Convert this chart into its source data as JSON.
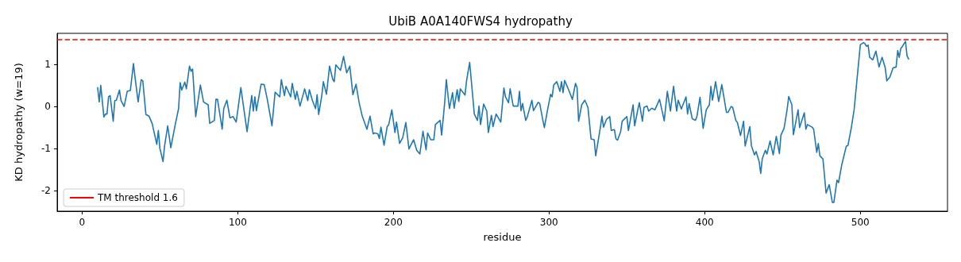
{
  "chart_data": {
    "type": "line",
    "title": "UbiB A0A140FWS4 hydropathy",
    "xlabel": "residue",
    "ylabel": "KD hydropathy (w=19)",
    "xlim": [
      -16,
      556
    ],
    "ylim": [
      -2.49,
      1.74
    ],
    "xticks": [
      0,
      100,
      200,
      300,
      400,
      500
    ],
    "yticks": [
      -2,
      -1,
      0,
      1
    ],
    "grid": false,
    "legend": "bottom left",
    "marker": "none",
    "line_style": "solid",
    "ref_lines": [
      {
        "axis": "y",
        "value": 1.6,
        "label": "TM threshold 1.6",
        "color": "#ff0000",
        "line_style": "dashed"
      }
    ],
    "series": [
      {
        "color": "#1f77b4",
        "x": [
          10,
          11,
          12,
          14,
          15,
          16,
          17,
          18,
          20,
          21,
          22,
          24,
          25,
          27,
          29,
          31,
          33,
          34,
          36,
          38,
          39,
          41,
          43,
          45,
          48,
          49,
          50,
          52,
          53,
          55,
          57,
          60,
          62,
          63,
          64,
          66,
          67,
          69,
          70,
          71,
          73,
          76,
          78,
          81,
          82,
          85,
          86,
          87,
          90,
          91,
          93,
          95,
          97,
          99,
          102,
          106,
          109,
          110,
          111,
          112,
          115,
          117,
          119,
          122,
          124,
          127,
          128,
          130,
          131,
          134,
          135,
          137,
          138,
          140,
          143,
          145,
          146,
          148,
          150,
          151,
          152,
          154,
          155,
          157,
          159,
          161,
          162,
          163,
          166,
          168,
          170,
          172,
          174,
          176,
          178,
          180,
          183,
          185,
          187,
          188,
          190,
          191,
          192,
          194,
          196,
          197,
          199,
          201,
          202,
          204,
          206,
          208,
          210,
          213,
          215,
          217,
          219,
          221,
          222,
          224,
          226,
          227,
          230,
          231,
          233,
          234,
          236,
          238,
          239,
          241,
          242,
          243,
          246,
          247,
          249,
          252,
          254,
          255,
          256,
          258,
          260,
          261,
          263,
          264,
          266,
          269,
          271,
          272,
          274,
          275,
          277,
          280,
          281,
          282,
          283,
          285,
          286,
          289,
          290,
          293,
          294,
          296,
          297,
          299,
          301,
          302,
          303,
          305,
          307,
          308,
          309,
          310,
          312,
          315,
          317,
          318,
          319,
          321,
          323,
          325,
          326,
          327,
          329,
          330,
          333,
          334,
          335,
          337,
          339,
          340,
          342,
          343,
          344,
          346,
          347,
          350,
          351,
          354,
          355,
          357,
          358,
          360,
          361,
          363,
          364,
          366,
          368,
          371,
          374,
          376,
          378,
          380,
          382,
          383,
          385,
          388,
          389,
          390,
          392,
          394,
          395,
          397,
          399,
          401,
          403,
          404,
          405,
          407,
          409,
          411,
          414,
          415,
          417,
          418,
          420,
          421,
          423,
          425,
          426,
          429,
          430,
          432,
          433,
          435,
          436,
          437,
          439,
          440,
          442,
          444,
          446,
          448,
          449,
          451,
          453,
          454,
          456,
          457,
          460,
          461,
          464,
          465,
          466,
          469,
          470,
          472,
          473,
          474,
          476,
          478,
          480,
          482,
          483,
          485,
          486,
          488,
          491,
          492,
          494,
          496,
          498,
          500,
          502,
          503,
          504,
          505,
          506,
          508,
          510,
          512,
          514,
          516,
          517,
          519,
          521,
          523,
          524,
          525,
          526,
          527,
          529,
          530,
          531
        ],
        "values": [
          0.45,
          0.11,
          0.5,
          -0.25,
          -0.18,
          -0.18,
          0.23,
          0.26,
          -0.35,
          0.14,
          0.15,
          0.39,
          0.14,
          0.0,
          0.36,
          0.38,
          1.02,
          0.7,
          0.11,
          0.64,
          0.61,
          -0.19,
          -0.23,
          -0.4,
          -0.9,
          -0.57,
          -1.0,
          -1.31,
          -0.94,
          -0.46,
          -0.98,
          -0.4,
          -0.05,
          0.57,
          0.39,
          0.58,
          0.42,
          0.96,
          0.84,
          0.89,
          -0.24,
          0.51,
          0.11,
          0.04,
          -0.4,
          -0.33,
          0.17,
          0.17,
          -0.54,
          -0.05,
          0.15,
          -0.27,
          -0.24,
          -0.37,
          0.45,
          -0.6,
          0.26,
          -0.11,
          0.23,
          -0.1,
          0.53,
          0.52,
          0.17,
          -0.46,
          0.34,
          0.23,
          0.64,
          0.26,
          0.48,
          0.23,
          0.55,
          0.17,
          0.36,
          0.01,
          0.42,
          0.14,
          0.4,
          0.14,
          -0.05,
          0.28,
          -0.19,
          0.26,
          0.59,
          0.29,
          0.96,
          0.65,
          0.59,
          0.99,
          0.86,
          1.19,
          0.8,
          0.96,
          0.28,
          0.53,
          0.09,
          -0.23,
          -0.54,
          -0.23,
          -0.65,
          -0.63,
          -0.65,
          -0.76,
          -0.49,
          -0.92,
          -0.48,
          -0.43,
          -0.08,
          -0.62,
          -0.37,
          -0.88,
          -0.74,
          -0.38,
          -1.01,
          -0.79,
          -1.04,
          -1.13,
          -0.59,
          -1.03,
          -0.63,
          -0.79,
          -0.79,
          -0.43,
          -0.33,
          -0.68,
          0.11,
          0.64,
          -0.05,
          0.33,
          -0.04,
          0.4,
          0.12,
          0.42,
          0.27,
          0.61,
          1.05,
          -0.18,
          -0.33,
          0.01,
          -0.43,
          0.06,
          -0.11,
          -0.62,
          -0.21,
          -0.48,
          -0.18,
          -0.37,
          0.44,
          0.23,
          0.09,
          0.42,
          0.01,
          0.01,
          0.36,
          -0.1,
          0.07,
          -0.33,
          -0.25,
          0.15,
          -0.1,
          0.1,
          0.07,
          -0.32,
          -0.5,
          -0.09,
          0.29,
          0.23,
          0.51,
          0.59,
          0.36,
          0.59,
          0.33,
          0.62,
          0.45,
          0.17,
          0.55,
          0.45,
          -0.35,
          0.04,
          0.15,
          -0.02,
          -0.4,
          -0.77,
          -0.79,
          -1.17,
          -0.49,
          -0.23,
          -0.49,
          -0.3,
          -0.24,
          -0.57,
          -0.55,
          -0.77,
          -0.8,
          -0.6,
          -0.35,
          -0.24,
          -0.57,
          0.04,
          -0.46,
          -0.08,
          0.09,
          -0.35,
          -0.02,
          0.01,
          -0.11,
          -0.04,
          -0.08,
          0.17,
          -0.34,
          0.36,
          -0.11,
          0.48,
          -0.11,
          0.15,
          -0.06,
          0.23,
          -0.18,
          0.07,
          -0.29,
          -0.33,
          -0.24,
          0.22,
          -0.52,
          -0.08,
          0.04,
          0.48,
          0.15,
          0.59,
          0.12,
          0.52,
          -0.14,
          -0.14,
          0.0,
          -0.02,
          -0.33,
          -0.38,
          -0.69,
          -0.35,
          -0.94,
          -0.48,
          -0.93,
          -1.15,
          -1.07,
          -1.31,
          -1.59,
          -1.24,
          -1.04,
          -1.13,
          -0.82,
          -1.15,
          -0.71,
          -1.12,
          -0.68,
          -0.52,
          -0.06,
          0.24,
          0.04,
          -0.67,
          -0.08,
          -0.5,
          -0.15,
          -0.54,
          -0.43,
          -0.49,
          -0.54,
          -1.09,
          -0.88,
          -1.17,
          -1.25,
          -2.06,
          -1.86,
          -2.28,
          -2.28,
          -1.75,
          -1.81,
          -1.4,
          -0.94,
          -0.93,
          -0.55,
          -0.08,
          0.7,
          1.47,
          1.52,
          1.49,
          1.43,
          1.46,
          1.17,
          1.11,
          1.32,
          0.94,
          1.17,
          0.92,
          0.61,
          0.7,
          0.92,
          0.94,
          1.33,
          1.17,
          1.38,
          1.43,
          1.55,
          1.21,
          1.13
        ]
      }
    ]
  }
}
